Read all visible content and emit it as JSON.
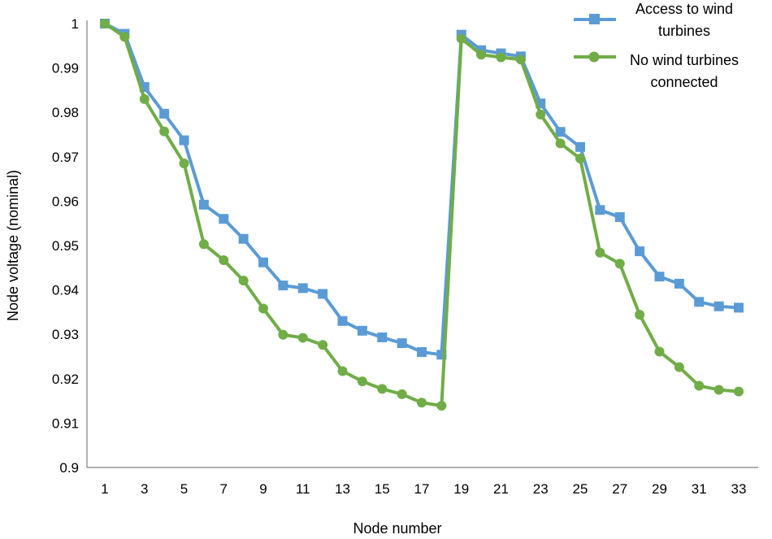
{
  "chart_data": {
    "type": "line",
    "title": "",
    "xlabel": "Node number",
    "ylabel": "Node voltage (nominal)",
    "ylim": [
      0.9,
      1.0
    ],
    "xlim": [
      1,
      33
    ],
    "x": [
      1,
      2,
      3,
      4,
      5,
      6,
      7,
      8,
      9,
      10,
      11,
      12,
      13,
      14,
      15,
      16,
      17,
      18,
      19,
      20,
      21,
      22,
      23,
      24,
      25,
      26,
      27,
      28,
      29,
      30,
      31,
      32,
      33
    ],
    "xticks": [
      1,
      3,
      5,
      7,
      9,
      11,
      13,
      15,
      17,
      19,
      21,
      23,
      25,
      27,
      29,
      31,
      33
    ],
    "xtick_labels": [
      "1",
      "3",
      "5",
      "7",
      "9",
      "11",
      "13",
      "15",
      "17",
      "19",
      "21",
      "23",
      "25",
      "27",
      "29",
      "31",
      "33"
    ],
    "yticks": [
      0.9,
      0.91,
      0.92,
      0.93,
      0.94,
      0.95,
      0.96,
      0.97,
      0.98,
      0.99,
      1.0
    ],
    "ytick_labels": [
      "0.9",
      "0.91",
      "0.92",
      "0.93",
      "0.94",
      "0.95",
      "0.96",
      "0.97",
      "0.98",
      "0.99",
      "1"
    ],
    "grid": false,
    "legend_position": "top-right",
    "series": [
      {
        "name": "Access to wind turbines",
        "legend_lines": [
          "Access to wind",
          "turbines"
        ],
        "color": "#5B9BD5",
        "marker": "square",
        "values": [
          1.0,
          0.9977,
          0.9857,
          0.9797,
          0.9737,
          0.9592,
          0.956,
          0.9515,
          0.9462,
          0.941,
          0.9404,
          0.9391,
          0.933,
          0.9308,
          0.9293,
          0.928,
          0.926,
          0.9254,
          0.9975,
          0.994,
          0.9933,
          0.9926,
          0.982,
          0.9756,
          0.9722,
          0.958,
          0.9564,
          0.9487,
          0.943,
          0.9414,
          0.9373,
          0.9363,
          0.936
        ]
      },
      {
        "name": "No wind turbines connected",
        "legend_lines": [
          "No wind turbines",
          "connected"
        ],
        "color": "#70AD47",
        "marker": "circle",
        "values": [
          1.0,
          0.997,
          0.983,
          0.9757,
          0.9685,
          0.9503,
          0.9467,
          0.9421,
          0.9358,
          0.9299,
          0.9292,
          0.9276,
          0.9217,
          0.9194,
          0.9177,
          0.9165,
          0.9146,
          0.9139,
          0.9966,
          0.993,
          0.9924,
          0.9919,
          0.9795,
          0.973,
          0.9696,
          0.9484,
          0.9459,
          0.9344,
          0.9261,
          0.9226,
          0.9184,
          0.9175,
          0.9171
        ]
      }
    ]
  }
}
